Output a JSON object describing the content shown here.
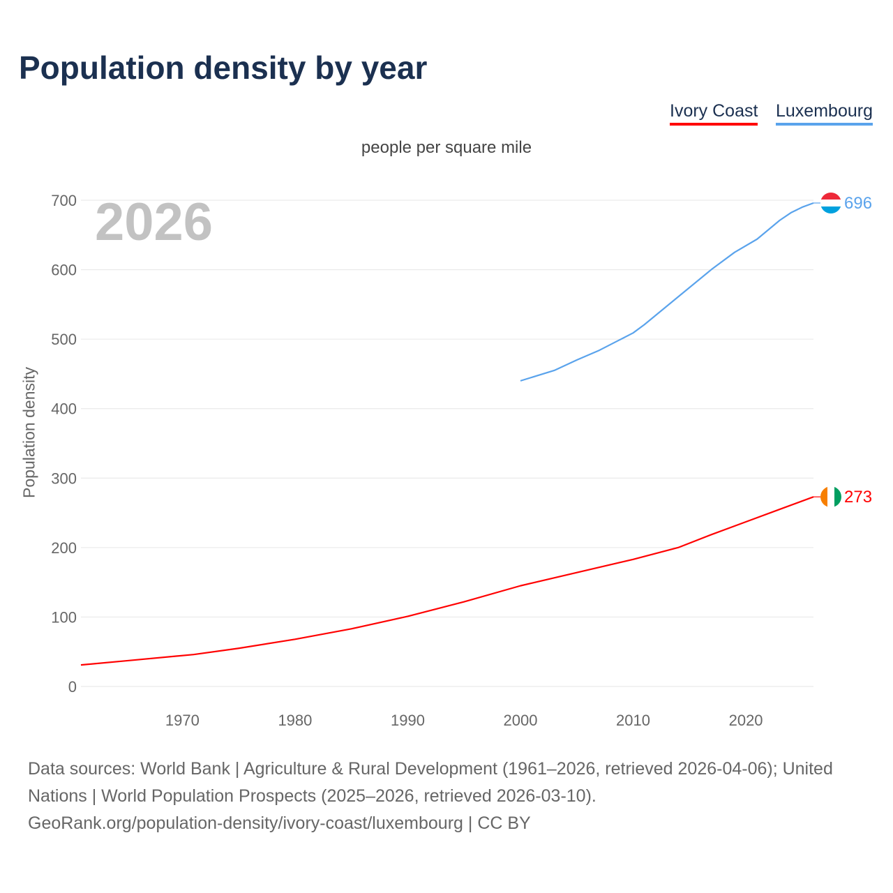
{
  "chart_data": {
    "type": "line",
    "title": "Population density by year",
    "subtitle": "people per square mile",
    "ylabel": "Population density",
    "xlabel": "",
    "current_year_label": "2026",
    "xlim": [
      1961,
      2026
    ],
    "ylim": [
      0,
      700
    ],
    "x_ticks": [
      1970,
      1980,
      1990,
      2000,
      2010,
      2020
    ],
    "y_ticks": [
      0,
      100,
      200,
      300,
      400,
      500,
      600,
      700
    ],
    "grid": true,
    "legend_position": "top-right",
    "series": [
      {
        "name": "Ivory Coast",
        "color": "#ff0000",
        "end_label": "273",
        "x": [
          1961,
          1965,
          1971,
          1975,
          1980,
          1985,
          1990,
          1995,
          2000,
          2005,
          2010,
          2014,
          2017,
          2020,
          2023,
          2026
        ],
        "y": [
          31,
          37,
          46,
          55,
          68,
          83,
          101,
          122,
          145,
          164,
          183,
          200,
          219,
          237,
          255,
          273
        ]
      },
      {
        "name": "Luxembourg",
        "color": "#5aa3ec",
        "end_label": "696",
        "x": [
          2000,
          2003,
          2005,
          2007,
          2010,
          2011,
          2014,
          2017,
          2019,
          2021,
          2023,
          2024,
          2025,
          2026
        ],
        "y": [
          440,
          455,
          470,
          484,
          509,
          521,
          561,
          601,
          625,
          644,
          671,
          682,
          690,
          696
        ]
      }
    ]
  },
  "footer": {
    "line1": "Data sources: World Bank | Agriculture & Rural Development (1961–2026, retrieved 2026-04-06); United",
    "line2": "Nations | World Population Prospects (2025–2026, retrieved 2026-03-10).",
    "line3": "GeoRank.org/population-density/ivory-coast/luxembourg | CC BY"
  }
}
